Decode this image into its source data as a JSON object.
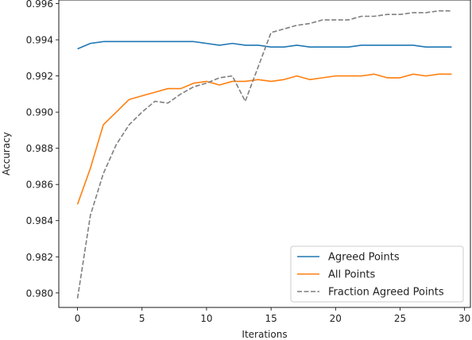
{
  "chart_data": {
    "type": "line",
    "title": "",
    "xlabel": "Iterations",
    "ylabel": "Accuracy",
    "xlim": [
      -1.45,
      30.45
    ],
    "ylim": [
      0.9792,
      0.9962
    ],
    "xticks": [
      0,
      5,
      10,
      15,
      20,
      25,
      30
    ],
    "yticks": [
      0.98,
      0.982,
      0.984,
      0.986,
      0.988,
      0.99,
      0.992,
      0.994,
      0.996
    ],
    "grid": false,
    "legend_position": "lower-right",
    "x": [
      0,
      1,
      2,
      3,
      4,
      5,
      6,
      7,
      8,
      9,
      10,
      11,
      12,
      13,
      14,
      15,
      16,
      17,
      18,
      19,
      20,
      21,
      22,
      23,
      24,
      25,
      26,
      27,
      28,
      29
    ],
    "series": [
      {
        "name": "Agreed Points",
        "color": "#1f77b4",
        "style": "solid",
        "values": [
          0.9935,
          0.9938,
          0.9939,
          0.9939,
          0.9939,
          0.9939,
          0.9939,
          0.9939,
          0.9939,
          0.9939,
          0.9938,
          0.9937,
          0.9938,
          0.9937,
          0.9937,
          0.9936,
          0.9936,
          0.9937,
          0.9936,
          0.9936,
          0.9936,
          0.9936,
          0.9937,
          0.9937,
          0.9937,
          0.9937,
          0.9937,
          0.9936,
          0.9936,
          0.9936
        ]
      },
      {
        "name": "All Points",
        "color": "#ff7f0e",
        "style": "solid",
        "values": [
          0.9849,
          0.9869,
          0.9893,
          0.99,
          0.9907,
          0.9909,
          0.9911,
          0.9913,
          0.9913,
          0.9916,
          0.9917,
          0.9915,
          0.9917,
          0.9917,
          0.9918,
          0.9917,
          0.9918,
          0.992,
          0.9918,
          0.9919,
          0.992,
          0.992,
          0.992,
          0.9921,
          0.9919,
          0.9919,
          0.9921,
          0.992,
          0.9921,
          0.9921
        ]
      },
      {
        "name": "Fraction Agreed Points",
        "color": "#7f7f7f",
        "style": "dashed",
        "values": [
          0.9797,
          0.9843,
          0.9866,
          0.9882,
          0.9893,
          0.99,
          0.9906,
          0.9905,
          0.991,
          0.9914,
          0.9916,
          0.9919,
          0.992,
          0.9906,
          0.9925,
          0.9944,
          0.9946,
          0.9948,
          0.9949,
          0.9951,
          0.9951,
          0.9951,
          0.9953,
          0.9953,
          0.9954,
          0.9954,
          0.9955,
          0.9955,
          0.9956,
          0.9956
        ]
      }
    ]
  }
}
